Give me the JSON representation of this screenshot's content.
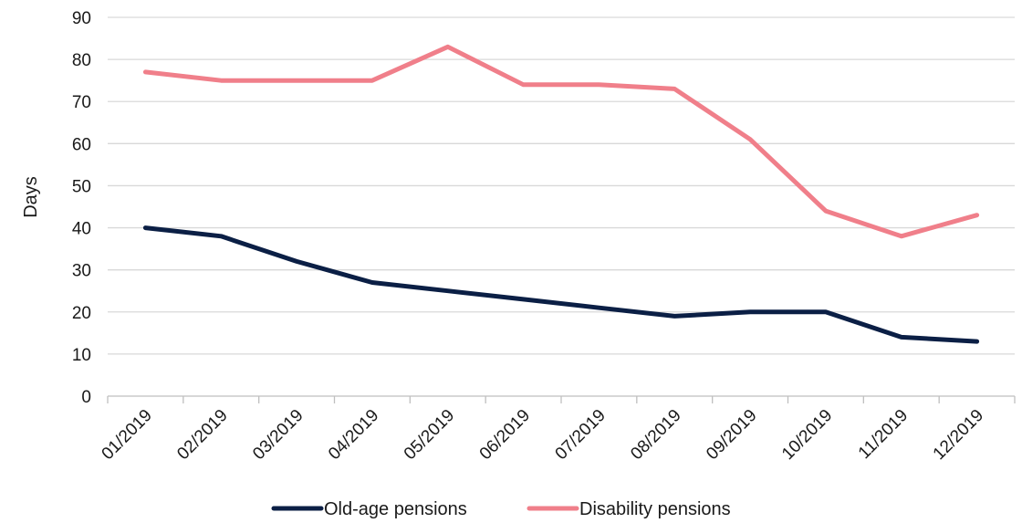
{
  "chart_data": {
    "type": "line",
    "title": "",
    "xlabel": "",
    "ylabel": "Days",
    "ylim": [
      0,
      90
    ],
    "yticks": [
      0,
      10,
      20,
      30,
      40,
      50,
      60,
      70,
      80,
      90
    ],
    "grid": true,
    "legend_position": "bottom",
    "categories": [
      "01/2019",
      "02/2019",
      "03/2019",
      "04/2019",
      "05/2019",
      "06/2019",
      "07/2019",
      "08/2019",
      "09/2019",
      "10/2019",
      "11/2019",
      "12/2019"
    ],
    "series": [
      {
        "name": "Old-age pensions",
        "color": "#0b1f45",
        "values": [
          40,
          38,
          32,
          27,
          25,
          23,
          21,
          19,
          20,
          20,
          14,
          13
        ]
      },
      {
        "name": "Disability pensions",
        "color": "#f07f8a",
        "values": [
          77,
          75,
          75,
          75,
          83,
          74,
          74,
          73,
          61,
          44,
          38,
          43
        ]
      }
    ]
  }
}
